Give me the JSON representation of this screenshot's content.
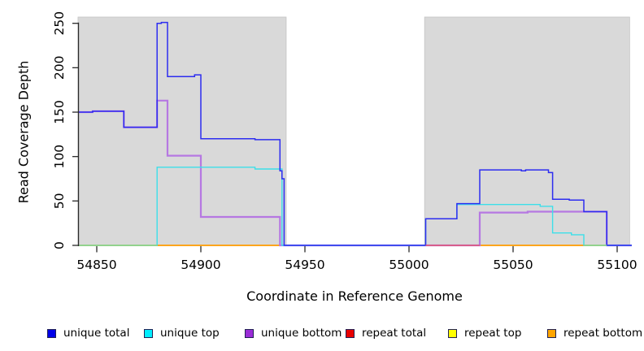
{
  "figure": {
    "background": "#ffffff",
    "plot_background": "#ffffff",
    "shaded_region_color": "#d9d9d9",
    "shaded_region_border": "#c4c4c4",
    "axis_color": "#2a2a2a",
    "text_color": "#000000"
  },
  "axes": {
    "x": {
      "label": "Coordinate in Reference Genome",
      "ticks": [
        54850,
        54900,
        54950,
        55000,
        55050,
        55100
      ]
    },
    "y": {
      "label": "Read Coverage Depth",
      "ticks": [
        0,
        50,
        100,
        150,
        200,
        250
      ]
    }
  },
  "chart_data": {
    "type": "line",
    "step": true,
    "title": "",
    "xlabel": "Coordinate in Reference Genome",
    "ylabel": "Read Coverage Depth",
    "xlim": [
      54840.5,
      55107
    ],
    "ylim": [
      0,
      257
    ],
    "grid": false,
    "legend_position": "bottom",
    "shaded_regions": [
      {
        "x1": 54841,
        "x2": 54941,
        "color": "#d9d9d9"
      },
      {
        "x1": 55007.5,
        "x2": 55106,
        "color": "#d9d9d9"
      }
    ],
    "series": [
      {
        "name": "repeat total",
        "color": "#e00000",
        "points": [
          [
            54841,
            0
          ],
          [
            55107,
            0
          ]
        ]
      },
      {
        "name": "repeat top",
        "color": "#ffff00",
        "points": [
          [
            54841,
            0
          ],
          [
            55107,
            0
          ]
        ]
      },
      {
        "name": "repeat bottom",
        "color": "#ff9e14",
        "points": [
          [
            54841,
            0
          ],
          [
            55107,
            0
          ]
        ]
      },
      {
        "name": "unique bottom",
        "color": "#b678e2",
        "points": [
          [
            54841,
            150
          ],
          [
            54848,
            151
          ],
          [
            54863,
            133
          ],
          [
            54879,
            163
          ],
          [
            54884,
            101
          ],
          [
            54900,
            32
          ],
          [
            54938,
            0
          ],
          [
            55034,
            37
          ],
          [
            55057,
            38
          ],
          [
            55095,
            0
          ],
          [
            55107,
            0
          ]
        ]
      },
      {
        "name": "unique top",
        "color": "#3cdfe9",
        "points": [
          [
            54841,
            0
          ],
          [
            54879,
            88
          ],
          [
            54926,
            86
          ],
          [
            54939,
            0
          ],
          [
            55008,
            30
          ],
          [
            55023,
            46
          ],
          [
            55063,
            44
          ],
          [
            55069,
            14
          ],
          [
            55078,
            12
          ],
          [
            55084,
            0
          ],
          [
            55107,
            0
          ]
        ]
      },
      {
        "name": "unique total",
        "color": "#2d2df0",
        "points": [
          [
            54841,
            150
          ],
          [
            54848,
            151
          ],
          [
            54863,
            133
          ],
          [
            54879,
            250
          ],
          [
            54881,
            251
          ],
          [
            54884,
            190
          ],
          [
            54897,
            192
          ],
          [
            54900,
            120
          ],
          [
            54926,
            119
          ],
          [
            54938,
            84
          ],
          [
            54939,
            75
          ],
          [
            54940,
            0
          ],
          [
            55008,
            30
          ],
          [
            55023,
            47
          ],
          [
            55034,
            85
          ],
          [
            55054,
            84
          ],
          [
            55056,
            85
          ],
          [
            55067,
            82
          ],
          [
            55069,
            52
          ],
          [
            55077,
            51
          ],
          [
            55084,
            38
          ],
          [
            55095,
            0
          ],
          [
            55107,
            0
          ]
        ]
      }
    ],
    "baseline_overlays": [
      {
        "x1": 54841,
        "x2": 54879,
        "color": "#8fd58f"
      },
      {
        "x1": 55008,
        "x2": 55034,
        "color": "#e25570"
      },
      {
        "x1": 55084,
        "x2": 55095,
        "color": "#8fd58f"
      }
    ]
  },
  "legend": {
    "items": [
      {
        "label": "unique total",
        "color": "#0000e8"
      },
      {
        "label": "unique top",
        "color": "#00eeff"
      },
      {
        "label": "unique bottom",
        "color": "#9a2cd6"
      },
      {
        "label": "repeat total",
        "color": "#e80000"
      },
      {
        "label": "repeat top",
        "color": "#ffff00"
      },
      {
        "label": "repeat bottom",
        "color": "#ffa500"
      }
    ]
  }
}
